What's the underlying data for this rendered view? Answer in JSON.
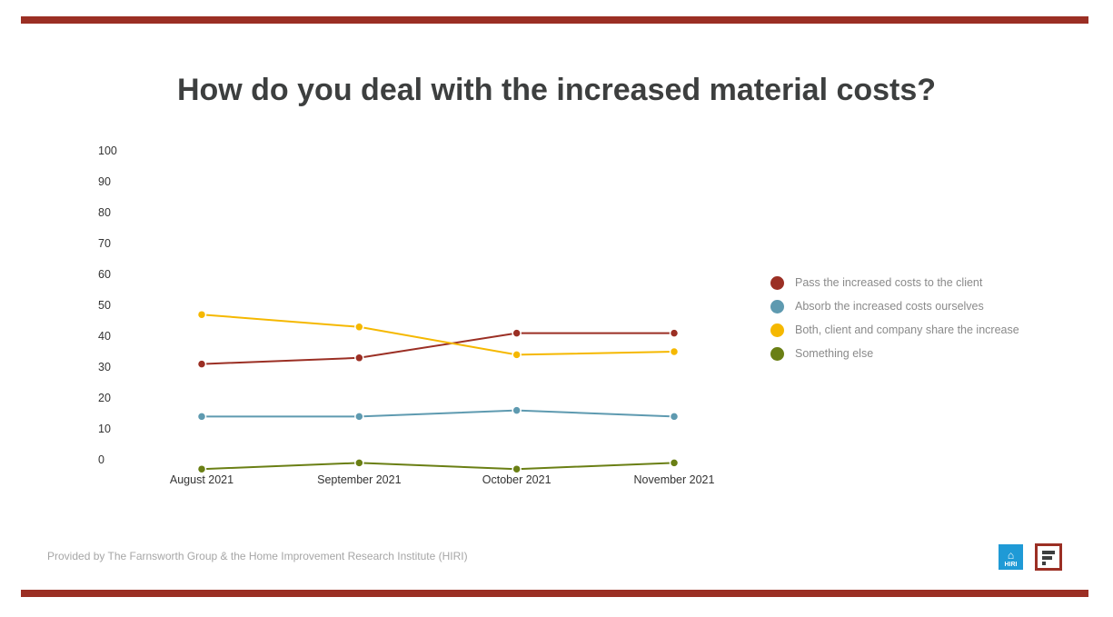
{
  "title": "How do you deal with the increased material costs?",
  "footer": "Provided by The Farnsworth Group & the Home Improvement Research Institute (HIRI)",
  "logos": {
    "hiri_text": "HIRI",
    "hiri_icon": "house-icon"
  },
  "chart_data": {
    "type": "line",
    "title": "How do you deal with the increased material costs?",
    "categories": [
      "August 2021",
      "September 2021",
      "October 2021",
      "November 2021"
    ],
    "ylim": [
      0,
      100
    ],
    "yticks": [
      0,
      10,
      20,
      30,
      40,
      50,
      60,
      70,
      80,
      90,
      100
    ],
    "grid": false,
    "legend_position": "right",
    "series": [
      {
        "name": "Pass the increased costs to the client",
        "color": "#9b2f24",
        "values": [
          31,
          33,
          41,
          41
        ]
      },
      {
        "name": "Absorb the increased costs ourselves",
        "color": "#5e9ab0",
        "values": [
          14,
          14,
          16,
          14
        ]
      },
      {
        "name": "Both, client and company share the increase",
        "color": "#f5b800",
        "values": [
          47,
          43,
          34,
          35
        ]
      },
      {
        "name": "Something else",
        "color": "#6a7f14",
        "values": [
          -3,
          -1,
          -3,
          -1
        ]
      }
    ]
  }
}
